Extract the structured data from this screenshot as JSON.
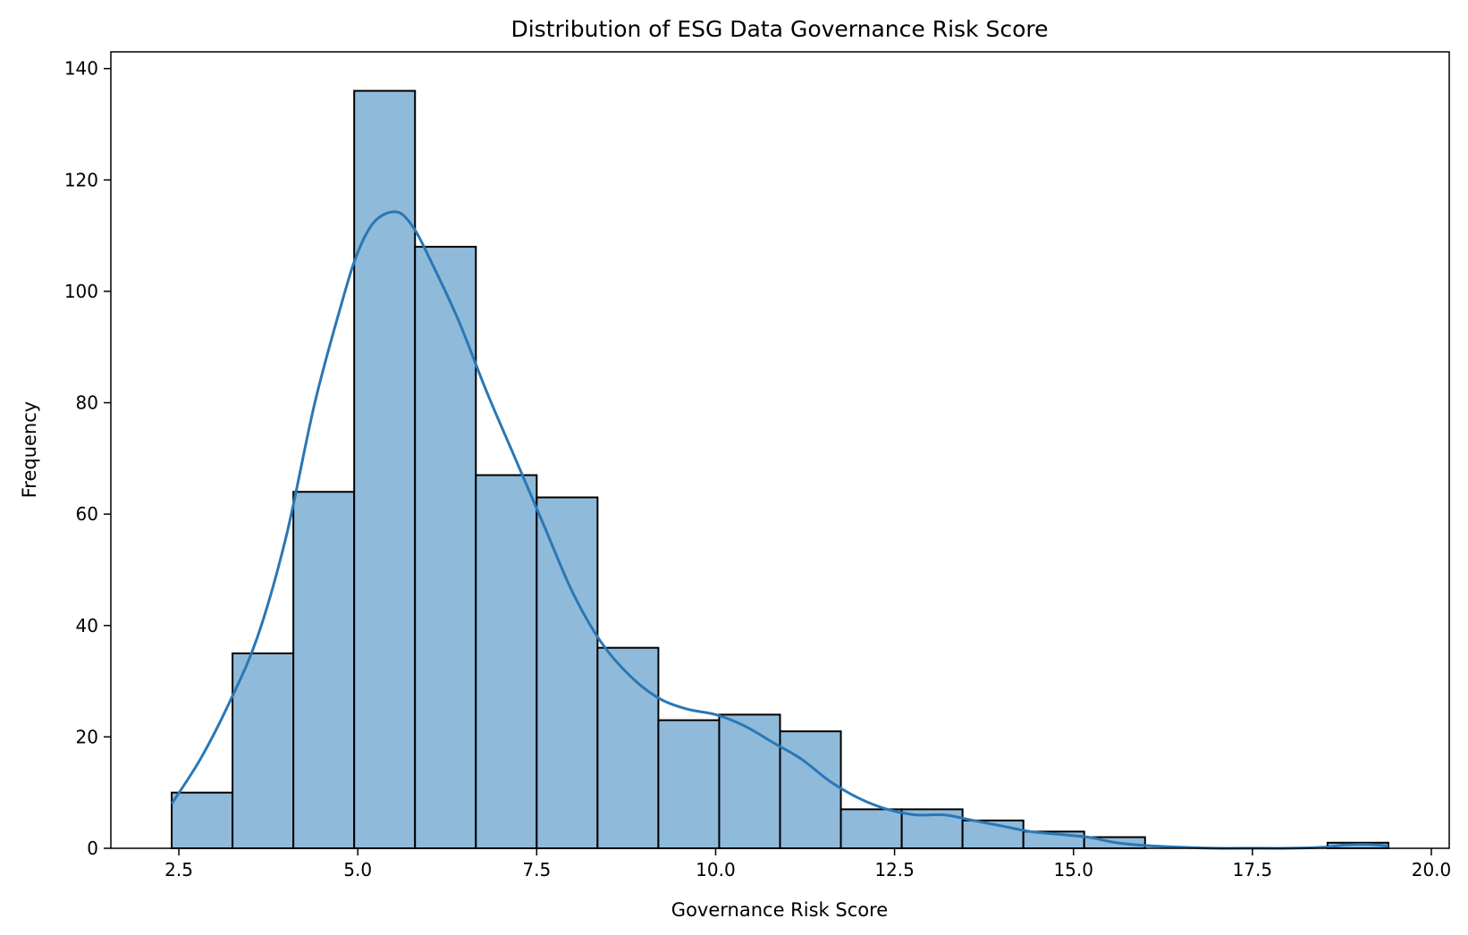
{
  "chart_data": {
    "type": "bar",
    "subtype": "histogram-with-kde",
    "title": "Distribution of ESG Data Governance Risk Score",
    "xlabel": "Governance Risk Score",
    "ylabel": "Frequency",
    "xlim": [
      1.55,
      20.25
    ],
    "ylim": [
      0,
      143
    ],
    "xticks": [
      2.5,
      5.0,
      7.5,
      10.0,
      12.5,
      15.0,
      17.5,
      20.0
    ],
    "xtick_labels": [
      "2.5",
      "5.0",
      "7.5",
      "10.0",
      "12.5",
      "15.0",
      "17.5",
      "20.0"
    ],
    "yticks": [
      0,
      20,
      40,
      60,
      80,
      100,
      120,
      140
    ],
    "ytick_labels": [
      "0",
      "20",
      "40",
      "60",
      "80",
      "100",
      "120",
      "140"
    ],
    "bin_edges": [
      2.4,
      3.25,
      4.1,
      4.95,
      5.8,
      6.65,
      7.5,
      8.35,
      9.2,
      10.05,
      10.9,
      11.75,
      12.6,
      13.45,
      14.3,
      15.15,
      16.0,
      16.85,
      17.7,
      18.55,
      19.4
    ],
    "values": [
      10,
      35,
      64,
      136,
      108,
      67,
      63,
      36,
      23,
      24,
      21,
      7,
      7,
      5,
      3,
      2,
      0,
      0,
      0,
      1
    ],
    "kde": {
      "x": [
        2.4,
        2.8,
        3.2,
        3.6,
        4.0,
        4.4,
        4.8,
        5.0,
        5.2,
        5.4,
        5.6,
        5.8,
        6.0,
        6.4,
        6.8,
        7.2,
        7.6,
        8.0,
        8.4,
        8.8,
        9.2,
        9.6,
        10.0,
        10.4,
        10.8,
        11.2,
        11.6,
        12.0,
        12.4,
        12.8,
        13.2,
        13.6,
        14.0,
        14.4,
        14.8,
        15.2,
        15.6,
        16.0,
        16.5,
        17.0,
        17.5,
        18.0,
        18.5,
        18.8,
        19.1,
        19.4
      ],
      "y": [
        8,
        16,
        26,
        38,
        56,
        80,
        99,
        107,
        112,
        114,
        114,
        111,
        106,
        95,
        82,
        70,
        58,
        46,
        37,
        31,
        27,
        25,
        24,
        22,
        19,
        16,
        12,
        9,
        7,
        6,
        6,
        5,
        4,
        3,
        2.5,
        2,
        1,
        0.5,
        0.2,
        0,
        0,
        0,
        0.2,
        0.6,
        0.7,
        0.4
      ]
    },
    "bar_color": "#8fbada",
    "bar_edge_color": "#000000",
    "line_color": "#2a77b5",
    "grid": false,
    "legend": "none"
  }
}
